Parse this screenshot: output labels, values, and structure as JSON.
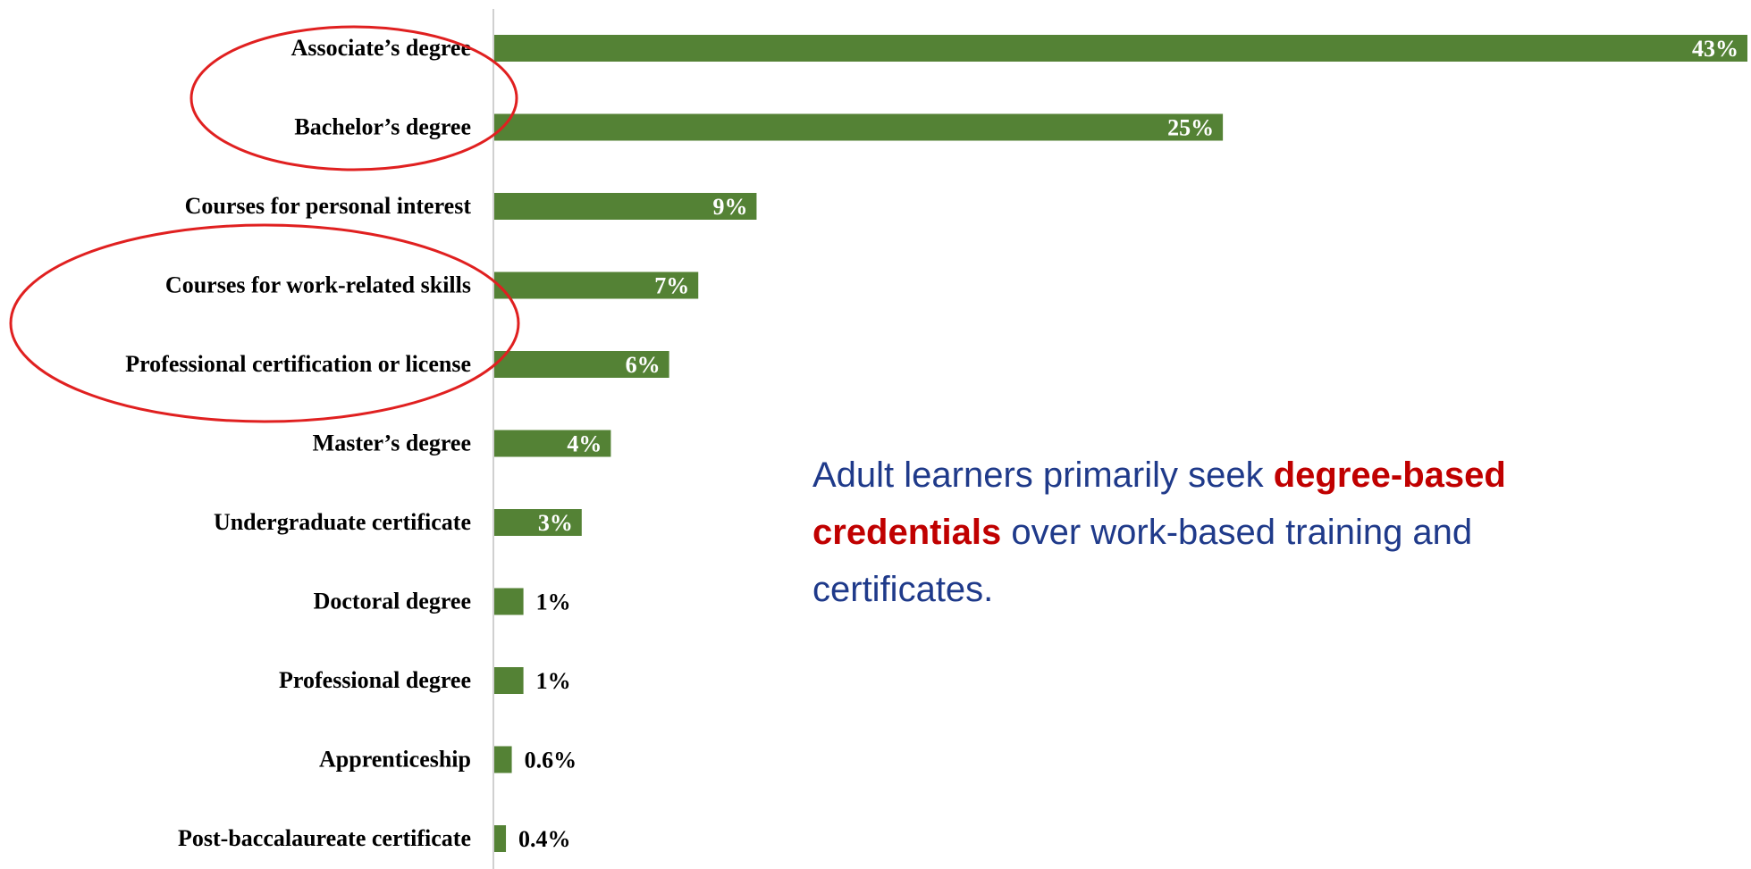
{
  "chart_data": {
    "type": "bar",
    "orientation": "horizontal",
    "categories": [
      "Associate’s degree",
      "Bachelor’s degree",
      "Courses for personal interest",
      "Courses for work-related skills",
      "Professional certification or license",
      "Master’s degree",
      "Undergraduate certificate",
      "Doctoral degree",
      "Professional degree",
      "Apprenticeship",
      "Post-baccalaureate certificate"
    ],
    "values": [
      43,
      25,
      9,
      7,
      6,
      4,
      3,
      1,
      1,
      0.6,
      0.4
    ],
    "value_labels": [
      "43%",
      "25%",
      "9%",
      "7%",
      "6%",
      "4%",
      "3%",
      "1%",
      "1%",
      "0.6%",
      "0.4%"
    ],
    "color": "#548235",
    "annotation": [
      "Adult learners primarily seek ",
      "degree-based credentials",
      " over work-based training and certificates."
    ]
  }
}
